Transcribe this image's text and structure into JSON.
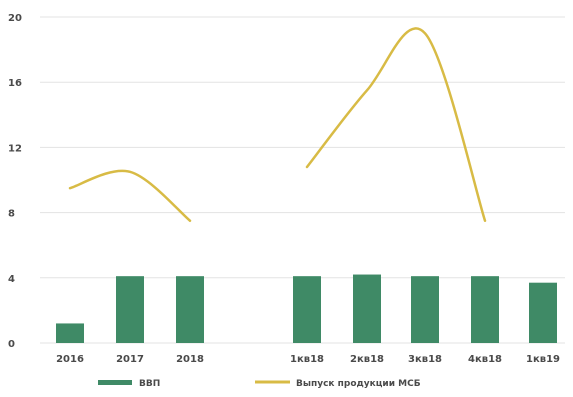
{
  "chart_data": {
    "type": "bar",
    "categories": [
      "2016",
      "2017",
      "2018",
      "1кв18",
      "2кв18",
      "3кв18",
      "4кв18",
      "1кв19"
    ],
    "series": [
      {
        "name": "ВВП",
        "kind": "bar",
        "values": [
          1.2,
          4.1,
          4.1,
          4.1,
          4.2,
          4.1,
          4.1,
          3.7
        ]
      },
      {
        "name": "Выпуск продукции МСБ",
        "kind": "line",
        "values": [
          9.5,
          10.5,
          7.5,
          10.8,
          15.5,
          19.0,
          7.5,
          null
        ]
      }
    ],
    "ylim": [
      0,
      20
    ],
    "yticks": [
      0,
      4,
      8,
      12,
      16,
      20
    ],
    "grid": true,
    "legend": "bottom",
    "colors": {
      "bar": "#3f8a66",
      "line": "#d8bb45",
      "grid": "#e3e3e3"
    }
  }
}
